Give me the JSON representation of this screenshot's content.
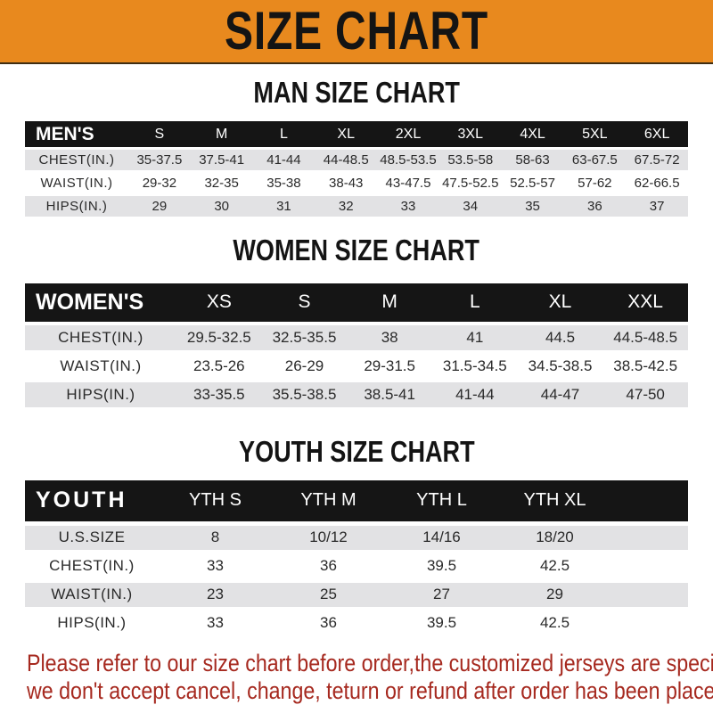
{
  "banner": {
    "title": "SIZE CHART"
  },
  "colors": {
    "banner_orange": "#e8891e",
    "table_header_black": "#151515",
    "row_stripe_gray": "#e2e2e4",
    "disclaimer_red": "#a6291f"
  },
  "tables": [
    {
      "id": "men",
      "heading": "MAN SIZE CHART",
      "header": [
        "MEN'S",
        "S",
        "M",
        "L",
        "XL",
        "2XL",
        "3XL",
        "4XL",
        "5XL",
        "6XL"
      ],
      "rows": [
        [
          "CHEST(IN.)",
          "35-37.5",
          "37.5-41",
          "41-44",
          "44-48.5",
          "48.5-53.5",
          "53.5-58",
          "58-63",
          "63-67.5",
          "67.5-72"
        ],
        [
          "WAIST(IN.)",
          "29-32",
          "32-35",
          "35-38",
          "38-43",
          "43-47.5",
          "47.5-52.5",
          "52.5-57",
          "57-62",
          "62-66.5"
        ],
        [
          "HIPS(IN.)",
          "29",
          "30",
          "31",
          "32",
          "33",
          "34",
          "35",
          "36",
          "37"
        ]
      ]
    },
    {
      "id": "women",
      "heading": "WOMEN SIZE CHART",
      "header": [
        "WOMEN'S",
        "XS",
        "S",
        "M",
        "L",
        "XL",
        "XXL"
      ],
      "rows": [
        [
          "CHEST(IN.)",
          "29.5-32.5",
          "32.5-35.5",
          "38",
          "41",
          "44.5",
          "44.5-48.5"
        ],
        [
          "WAIST(IN.)",
          "23.5-26",
          "26-29",
          "29-31.5",
          "31.5-34.5",
          "34.5-38.5",
          "38.5-42.5"
        ],
        [
          "HIPS(IN.)",
          "33-35.5",
          "35.5-38.5",
          "38.5-41",
          "41-44",
          "44-47",
          "47-50"
        ]
      ]
    },
    {
      "id": "youth",
      "heading": "YOUTH SIZE CHART",
      "header": [
        "YOUTH",
        "YTH S",
        "YTH M",
        "YTH L",
        "YTH XL"
      ],
      "rows": [
        [
          "U.S.SIZE",
          "8",
          "10/12",
          "14/16",
          "18/20"
        ],
        [
          "CHEST(IN.)",
          "33",
          "36",
          "39.5",
          "42.5"
        ],
        [
          "WAIST(IN.)",
          "23",
          "25",
          "27",
          "29"
        ],
        [
          "HIPS(IN.)",
          "33",
          "36",
          "39.5",
          "42.5"
        ]
      ]
    }
  ],
  "disclaimer": {
    "line1": "Please refer to our size chart before order,the customized jerseys are special products,",
    "line2": "we don't accept cancel, change, teturn or refund after order has been placed!"
  }
}
